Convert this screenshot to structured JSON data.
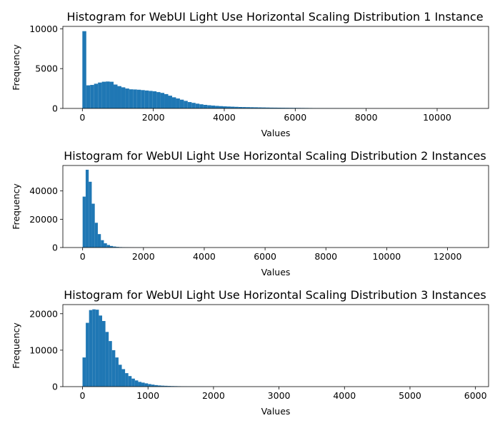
{
  "chart_data": [
    {
      "type": "histogram",
      "title": "Histogram for WebUI Light Use Horizontal Scaling Distribution 1 Instance",
      "xlabel": "Values",
      "ylabel": "Frequency",
      "xlim": [
        -550,
        11450
      ],
      "ylim": [
        0,
        10300
      ],
      "xticks": [
        0,
        2000,
        4000,
        6000,
        8000,
        10000
      ],
      "xtick_labels": [
        "0",
        "2000",
        "4000",
        "6000",
        "8000",
        "10000"
      ],
      "yticks": [
        0,
        5000,
        10000
      ],
      "ytick_labels": [
        "0",
        "5000",
        "10000"
      ],
      "bar_color": "#1f77b4",
      "bin_start": 0,
      "bin_width": 110,
      "counts": [
        9700,
        2900,
        2950,
        3100,
        3250,
        3350,
        3380,
        3350,
        3000,
        2800,
        2650,
        2500,
        2400,
        2380,
        2350,
        2300,
        2250,
        2200,
        2150,
        2050,
        1950,
        1800,
        1600,
        1400,
        1250,
        1100,
        950,
        800,
        700,
        600,
        520,
        450,
        400,
        360,
        320,
        290,
        260,
        240,
        220,
        200,
        180,
        170,
        160,
        150,
        140,
        130,
        120,
        110,
        100,
        95,
        90,
        85,
        80,
        75,
        70,
        65,
        60,
        55,
        50,
        45,
        40,
        38,
        35,
        32,
        30,
        28,
        25,
        22,
        20,
        18,
        15,
        13,
        12,
        10,
        9,
        8,
        7,
        6,
        5,
        5,
        4,
        4,
        3,
        3,
        3,
        2,
        2,
        2,
        2,
        1,
        1,
        1,
        1,
        1,
        1,
        1,
        1,
        1,
        1,
        1
      ]
    },
    {
      "type": "histogram",
      "title": "Histogram for WebUI Light Use Horizontal Scaling Distribution 2 Instances",
      "xlabel": "Values",
      "ylabel": "Frequency",
      "xlim": [
        -650,
        13350
      ],
      "ylim": [
        0,
        58000
      ],
      "xticks": [
        0,
        2000,
        4000,
        6000,
        8000,
        10000,
        12000
      ],
      "xtick_labels": [
        "0",
        "2000",
        "4000",
        "6000",
        "8000",
        "10000",
        "12000"
      ],
      "yticks": [
        0,
        20000,
        40000
      ],
      "ytick_labels": [
        "0",
        "20000",
        "40000"
      ],
      "bar_color": "#1f77b4",
      "bin_start": 0,
      "bin_width": 100,
      "counts": [
        36000,
        55000,
        46500,
        31000,
        17500,
        9500,
        5200,
        3000,
        1800,
        1100,
        700,
        450,
        300,
        220,
        160,
        120,
        90,
        70,
        55,
        45,
        35,
        28,
        22,
        18,
        14,
        11,
        9,
        7,
        6,
        5,
        4,
        3,
        3,
        2,
        2,
        2,
        1,
        1,
        1,
        1
      ]
    },
    {
      "type": "histogram",
      "title": "Histogram for WebUI Light Use Horizontal Scaling Distribution 3 Instances",
      "xlabel": "Values",
      "ylabel": "Frequency",
      "xlim": [
        -300,
        6200
      ],
      "ylim": [
        0,
        22500
      ],
      "xticks": [
        0,
        1000,
        2000,
        3000,
        4000,
        5000,
        6000
      ],
      "xtick_labels": [
        "0",
        "1000",
        "2000",
        "3000",
        "4000",
        "5000",
        "6000"
      ],
      "yticks": [
        0,
        10000,
        20000
      ],
      "ytick_labels": [
        "0",
        "10000",
        "20000"
      ],
      "bar_color": "#1f77b4",
      "bin_start": 0,
      "bin_width": 50,
      "counts": [
        8000,
        17500,
        21000,
        21200,
        21100,
        19500,
        18000,
        15000,
        12500,
        10000,
        8000,
        6000,
        4800,
        3700,
        2900,
        2200,
        1700,
        1300,
        1100,
        900,
        700,
        550,
        420,
        320,
        260,
        220,
        180,
        150,
        130,
        110,
        95,
        80,
        70,
        60,
        55,
        50,
        45,
        40,
        35,
        30,
        27,
        25,
        22,
        20,
        18,
        16,
        14,
        12,
        10,
        9,
        8,
        7,
        6,
        5,
        5,
        4,
        4,
        3,
        3,
        2,
        2,
        2,
        1,
        1,
        1,
        1,
        1,
        1,
        1
      ]
    }
  ]
}
